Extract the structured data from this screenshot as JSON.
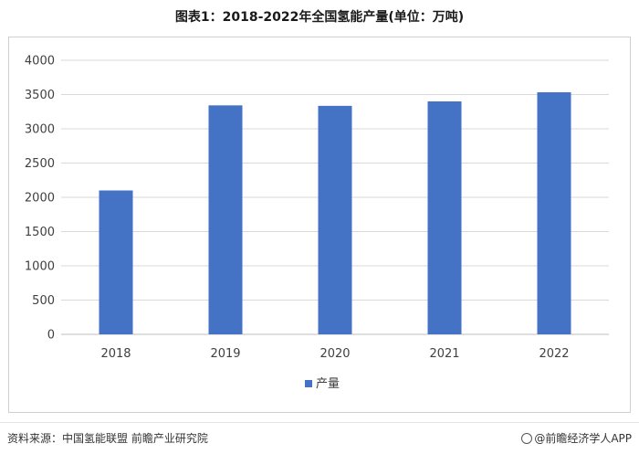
{
  "title": "图表1：2018-2022年全国氢能产量(单位：万吨)",
  "source": "资料来源：中国氢能联盟 前瞻产业研究院",
  "brand": "@前瞻经济学人APP",
  "chart_data": {
    "type": "bar",
    "title": "图表1：2018-2022年全国氢能产量(单位：万吨)",
    "categories": [
      "2018",
      "2019",
      "2020",
      "2021",
      "2022"
    ],
    "series": [
      {
        "name": "产量",
        "values": [
          2100,
          3342,
          3335,
          3400,
          3533
        ],
        "color": "#4472C4"
      }
    ],
    "yticks": [
      0,
      500,
      1000,
      1500,
      2000,
      2500,
      3000,
      3500,
      4000
    ],
    "ylim": [
      0,
      4000
    ],
    "grid": true,
    "legend": "bottom-center",
    "xlabel": "",
    "ylabel": ""
  }
}
